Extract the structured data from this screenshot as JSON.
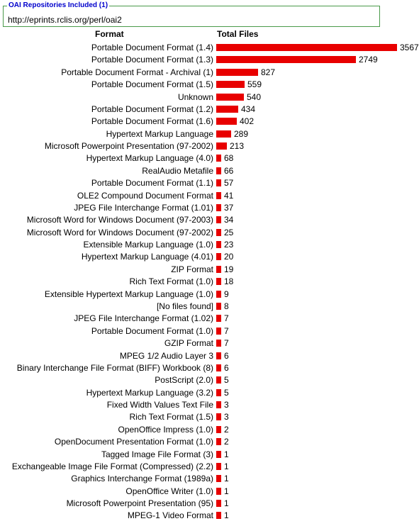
{
  "repositories": {
    "legend": "OAI Repositories Included (1)",
    "url": "http://eprints.rclis.org/perl/oai2"
  },
  "headers": {
    "format": "Format",
    "total": "Total Files"
  },
  "colors": {
    "bar": "#e80000",
    "border": "#4a9a4a",
    "legend": "#0000cc"
  },
  "chart_data": {
    "type": "bar",
    "orientation": "horizontal",
    "title": "",
    "xlabel": "Total Files",
    "ylabel": "Format",
    "categories": [
      "Portable Document Format (1.4)",
      "Portable Document Format (1.3)",
      "Portable Document Format - Archival (1)",
      "Portable Document Format (1.5)",
      "Unknown",
      "Portable Document Format (1.2)",
      "Portable Document Format (1.6)",
      "Hypertext Markup Language",
      "Microsoft Powerpoint Presentation (97-2002)",
      "Hypertext Markup Language (4.0)",
      "RealAudio Metafile",
      "Portable Document Format (1.1)",
      "OLE2 Compound Document Format",
      "JPEG File Interchange Format (1.01)",
      "Microsoft Word for Windows Document (97-2003)",
      "Microsoft Word for Windows Document (97-2002)",
      "Extensible Markup Language (1.0)",
      "Hypertext Markup Language (4.01)",
      "ZIP Format",
      "Rich Text Format (1.0)",
      "Extensible Hypertext Markup Language (1.0)",
      "[No files found]",
      "JPEG File Interchange Format (1.02)",
      "Portable Document Format (1.0)",
      "GZIP Format",
      "MPEG 1/2 Audio Layer 3",
      "Binary Interchange File Format (BIFF) Workbook (8)",
      "PostScript (2.0)",
      "Hypertext Markup Language (3.2)",
      "Fixed Width Values Text File",
      "Rich Text Format (1.5)",
      "OpenOffice Impress (1.0)",
      "OpenDocument Presentation Format (1.0)",
      "Tagged Image File Format (3)",
      "Exchangeable Image File Format (Compressed) (2.2)",
      "Graphics Interchange Format (1989a)",
      "OpenOffice Writer (1.0)",
      "Microsoft Powerpoint Presentation (95)",
      "MPEG-1 Video Format"
    ],
    "values": [
      3567,
      2749,
      827,
      559,
      540,
      434,
      402,
      289,
      213,
      68,
      66,
      57,
      41,
      37,
      34,
      25,
      23,
      20,
      19,
      18,
      9,
      8,
      7,
      7,
      7,
      6,
      6,
      5,
      5,
      3,
      3,
      2,
      2,
      1,
      1,
      1,
      1,
      1,
      1
    ],
    "xlim": [
      0,
      3567
    ],
    "grid": false,
    "legend": "none"
  }
}
